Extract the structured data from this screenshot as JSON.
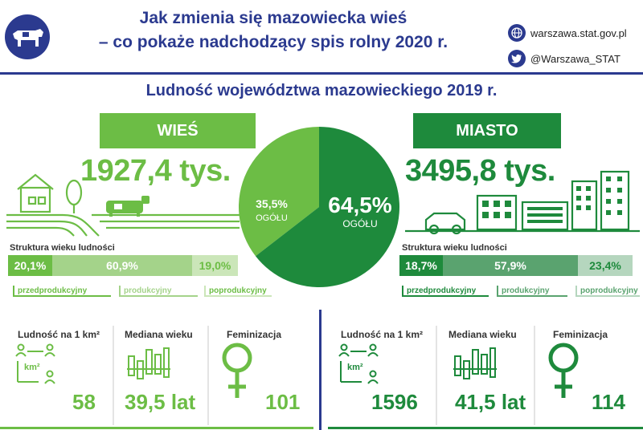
{
  "header": {
    "title_line1": "Jak zmienia się mazowiecka wieś",
    "title_line2": "– co pokaże nadchodzący spis rolny 2020 r.",
    "website": "warszawa.stat.gov.pl",
    "twitter": "@Warszawa_STAT",
    "icons": [
      "cow-logo-icon",
      "globe-icon",
      "twitter-icon"
    ]
  },
  "subtitle": "Ludność województwa mazowieckiego  2019 r.",
  "colors": {
    "navy": "#2b3a8f",
    "light_green": "#6cbd45",
    "dark_green": "#1e8a3c"
  },
  "village": {
    "tag": "WIEŚ",
    "population": "1927,4 tys.",
    "share_pct": "35,5%",
    "share_label": "OGÓŁU",
    "structure_label": "Struktura wieku ludności",
    "segments": [
      {
        "value": "20,1%",
        "label": "przedprodukcyjny",
        "fraction": 0.201
      },
      {
        "value": "60,9%",
        "label": "produkcyjny",
        "fraction": 0.609
      },
      {
        "value": "19,0%",
        "label": "poprodukcyjny",
        "fraction": 0.19
      }
    ],
    "stats": {
      "density_label": "Ludność na 1 km²",
      "density_icon_text": "km²",
      "density_value": "58",
      "median_label": "Mediana wieku",
      "median_value": "39,5 lat",
      "fem_label": "Feminizacja",
      "fem_value": "101"
    }
  },
  "city": {
    "tag": "MIASTO",
    "population": "3495,8 tys.",
    "share_pct": "64,5%",
    "share_label": "OGÓŁU",
    "structure_label": "Struktura wieku ludności",
    "segments": [
      {
        "value": "18,7%",
        "label": "przedprodukcyjny",
        "fraction": 0.187
      },
      {
        "value": "57,9%",
        "label": "produkcyjny",
        "fraction": 0.579
      },
      {
        "value": "23,4%",
        "label": "poprodukcyjny",
        "fraction": 0.234
      }
    ],
    "stats": {
      "density_label": "Ludność na 1 km²",
      "density_icon_text": "km²",
      "density_value": "1596",
      "median_label": "Mediana wieku",
      "median_value": "41,5 lat",
      "fem_label": "Feminizacja",
      "fem_value": "114"
    }
  },
  "pie": {
    "slices": [
      {
        "name": "wieś",
        "value": 35.5,
        "color": "#6cbd45"
      },
      {
        "name": "miasto",
        "value": 64.5,
        "color": "#1e8a3c"
      }
    ]
  }
}
